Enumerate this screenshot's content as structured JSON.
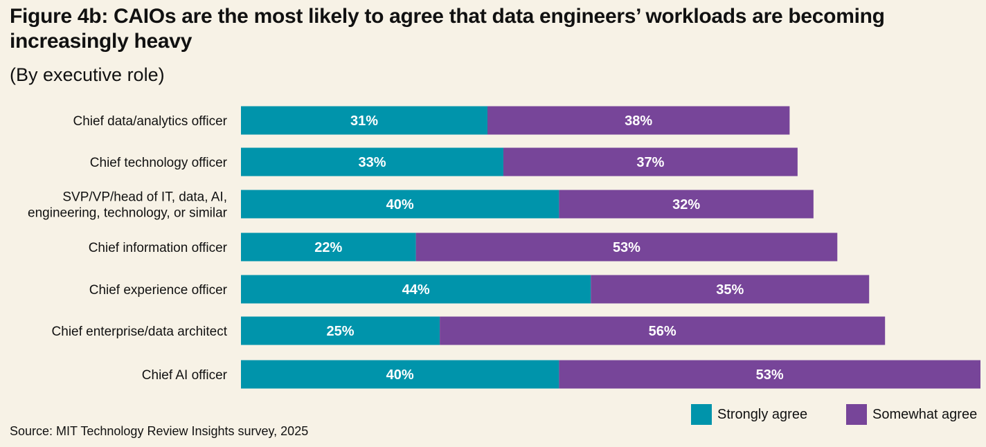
{
  "title": "Figure 4b: CAIOs are the most likely to agree that data engineers’ workloads are becoming increasingly heavy",
  "subtitle": "(By executive role)",
  "source": "Source: MIT Technology Review Insights survey, 2025",
  "colors": {
    "strongly": "#0094ab",
    "somewhat": "#774599",
    "background": "#f7f2e6"
  },
  "chart_data": {
    "type": "bar",
    "orientation": "horizontal",
    "stacked": true,
    "categories": [
      [
        "Chief data/analytics officer"
      ],
      [
        "Chief technology officer"
      ],
      [
        "SVP/VP/head of IT, data, AI,",
        "engineering, technology, or similar"
      ],
      [
        "Chief information officer"
      ],
      [
        "Chief experience officer"
      ],
      [
        "Chief enterprise/data architect"
      ],
      [
        "Chief AI officer"
      ]
    ],
    "series": [
      {
        "name": "Strongly agree",
        "values": [
          31,
          33,
          40,
          22,
          44,
          25,
          40
        ]
      },
      {
        "name": "Somewhat agree",
        "values": [
          38,
          37,
          32,
          53,
          35,
          56,
          53
        ]
      }
    ],
    "value_suffix": "%",
    "xlim": [
      0,
      93
    ],
    "legend_position": "bottom-right"
  }
}
